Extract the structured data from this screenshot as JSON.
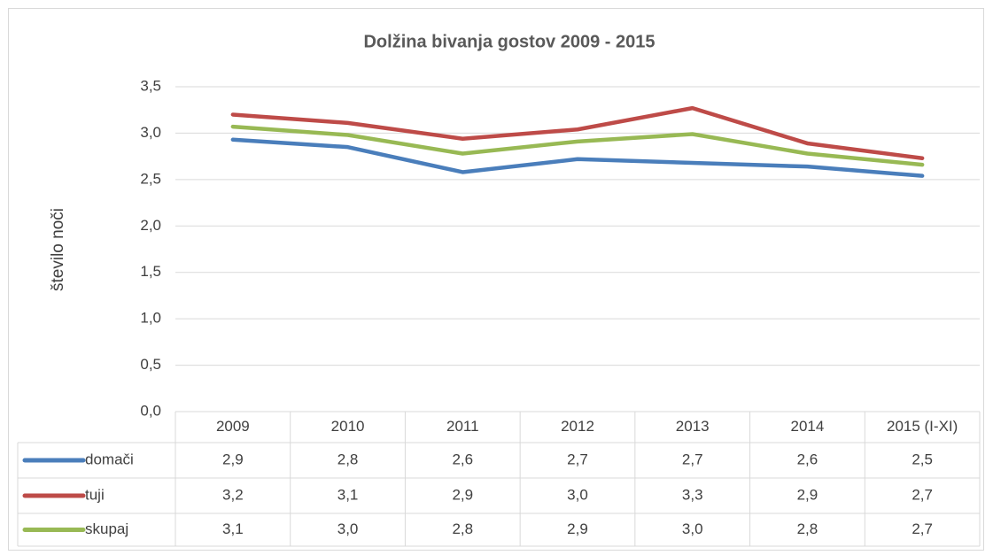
{
  "chart_data": {
    "type": "line",
    "title": "Dolžina bivanja gostov 2009 - 2015",
    "ylabel": "število noči",
    "categories": [
      "2009",
      "2010",
      "2011",
      "2012",
      "2013",
      "2014",
      "2015 (I-XI)"
    ],
    "series": [
      {
        "name": "domači",
        "color": "#4a7ebb",
        "values": [
          2.93,
          2.85,
          2.58,
          2.72,
          2.68,
          2.64,
          2.54
        ],
        "value_labels": [
          "2,9",
          "2,8",
          "2,6",
          "2,7",
          "2,7",
          "2,6",
          "2,5"
        ]
      },
      {
        "name": "tuji",
        "color": "#be4b48",
        "values": [
          3.2,
          3.11,
          2.94,
          3.04,
          3.27,
          2.89,
          2.73
        ],
        "value_labels": [
          "3,2",
          "3,1",
          "2,9",
          "3,0",
          "3,3",
          "2,9",
          "2,7"
        ]
      },
      {
        "name": "skupaj",
        "color": "#98b954",
        "values": [
          3.07,
          2.98,
          2.78,
          2.91,
          2.99,
          2.78,
          2.66
        ],
        "value_labels": [
          "3,1",
          "3,0",
          "2,8",
          "2,9",
          "3,0",
          "2,8",
          "2,7"
        ]
      }
    ],
    "ylim": [
      0,
      3.5
    ],
    "yticks": [
      {
        "value": 0,
        "label": "0,0"
      },
      {
        "value": 0.5,
        "label": "0,5"
      },
      {
        "value": 1,
        "label": "1,0"
      },
      {
        "value": 1.5,
        "label": "1,5"
      },
      {
        "value": 2,
        "label": "2,0"
      },
      {
        "value": 2.5,
        "label": "2,5"
      },
      {
        "value": 3,
        "label": "3,0"
      },
      {
        "value": 3.5,
        "label": "3,5"
      }
    ],
    "grid": true
  }
}
